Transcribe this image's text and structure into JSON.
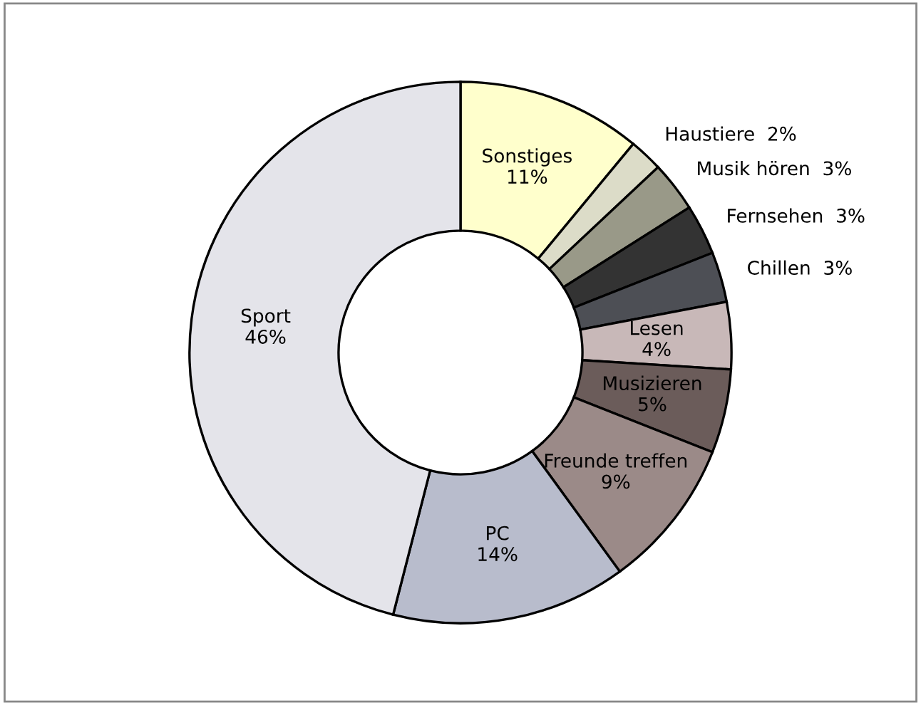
{
  "chart_data": {
    "type": "donut",
    "categories": [
      "Sonstiges",
      "Haustiere",
      "Musik hören",
      "Fernsehen",
      "Chillen",
      "Lesen",
      "Musizieren",
      "Freunde treffen",
      "PC",
      "Sport"
    ],
    "values": [
      11,
      2,
      3,
      3,
      3,
      4,
      5,
      9,
      14,
      46
    ],
    "colors": [
      "#ffffcc",
      "#dcdcc8",
      "#999988",
      "#333333",
      "#4d4f55",
      "#c8b8b8",
      "#6b5c5a",
      "#9b8a88",
      "#b8bccc",
      "#e4e4ea"
    ],
    "value_labels": [
      "11%",
      "2%",
      "3%",
      "3%",
      "3%",
      "4%",
      "5%",
      "9%",
      "14%",
      "46%"
    ]
  }
}
